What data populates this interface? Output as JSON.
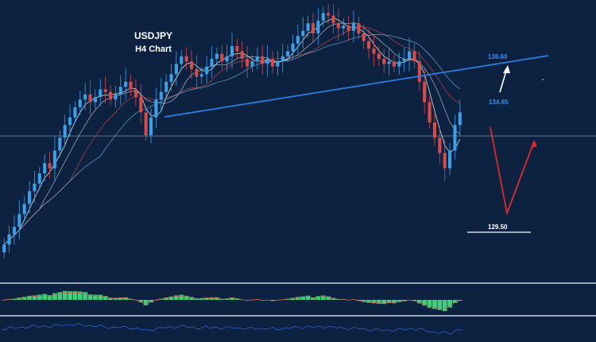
{
  "title": {
    "symbol": "USDJPY",
    "timeframe": "H4 Chart"
  },
  "levels": {
    "resistance_target": "136.60",
    "current_ref": "134.65",
    "support_target": "129.50"
  },
  "colors": {
    "background": "#0d2240",
    "bull_candle": "#3aa0e8",
    "bear_candle": "#d94a4a",
    "trendline": "#2f7fe0",
    "level_text": "#3a8ef0",
    "down_arrow": "#e02a2a",
    "up_arrow": "#ffffff",
    "panel_divider": "#c9d3de",
    "macd_pos": "#3ed17a",
    "macd_neg": "#3ed17a",
    "oscillator_line": "#2f5fd0"
  },
  "chart_data": {
    "type": "candlestick",
    "title": "USDJPY H4 Chart",
    "xlabel": "",
    "ylabel": "",
    "grid": false,
    "ylim": [
      127.5,
      137.5
    ],
    "horizontal_reference": 133.3,
    "closes": [
      128.2,
      128.6,
      128.9,
      129.4,
      129.8,
      130.3,
      130.6,
      131.0,
      131.4,
      131.2,
      131.9,
      132.4,
      132.9,
      133.2,
      133.6,
      133.9,
      134.1,
      133.8,
      134.0,
      134.3,
      134.2,
      133.9,
      134.1,
      134.4,
      134.6,
      134.3,
      134.0,
      133.4,
      132.5,
      133.2,
      133.9,
      134.2,
      134.6,
      134.9,
      135.3,
      135.6,
      135.4,
      135.1,
      134.8,
      134.9,
      135.2,
      135.5,
      135.7,
      135.4,
      135.6,
      136.0,
      135.8,
      135.5,
      135.2,
      135.4,
      135.6,
      135.3,
      135.5,
      135.2,
      135.4,
      135.6,
      135.8,
      136.1,
      136.4,
      136.6,
      136.9,
      136.5,
      137.0,
      137.3,
      137.2,
      136.9,
      136.7,
      136.8,
      136.6,
      136.9,
      136.5,
      136.2,
      135.9,
      135.7,
      135.5,
      135.3,
      135.4,
      135.2,
      135.4,
      135.5,
      135.8,
      135.4,
      134.6,
      133.8,
      133.0,
      132.4,
      131.8,
      131.2,
      131.9,
      132.9,
      133.4
    ],
    "trendline": {
      "from": [
        0,
        134.0
      ],
      "to": [
        1,
        136.6
      ]
    },
    "annotations": [
      "136.60",
      "134.65",
      "129.50"
    ]
  }
}
